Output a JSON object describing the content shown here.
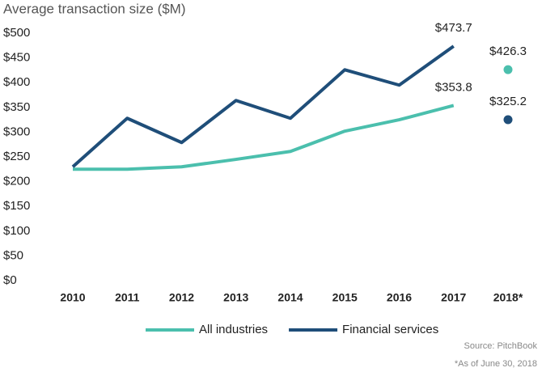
{
  "chart_data": {
    "type": "line",
    "title": "Average transaction size ($M)",
    "categories": [
      "2010",
      "2011",
      "2012",
      "2013",
      "2014",
      "2015",
      "2016",
      "2017",
      "2018*"
    ],
    "series": [
      {
        "name": "All industries",
        "color": "#4bbfad",
        "values": [
          225,
          225,
          230,
          245,
          261,
          302,
          325,
          353.8,
          426.3
        ],
        "value_labels": [
          null,
          null,
          null,
          null,
          null,
          null,
          null,
          "$353.8",
          "$426.3"
        ]
      },
      {
        "name": "Financial services",
        "color": "#1f4e79",
        "values": [
          230,
          328,
          279,
          364,
          328,
          426,
          395,
          473.7,
          325.2
        ],
        "value_labels": [
          null,
          null,
          null,
          null,
          null,
          null,
          null,
          "$473.7",
          "$325.2"
        ]
      }
    ],
    "ylim": [
      0,
      500
    ],
    "yticks": [
      {
        "value": 0,
        "label": "$0"
      },
      {
        "value": 50,
        "label": "$50"
      },
      {
        "value": 100,
        "label": "$100"
      },
      {
        "value": 150,
        "label": "$150"
      },
      {
        "value": 200,
        "label": "$200"
      },
      {
        "value": 250,
        "label": "$250"
      },
      {
        "value": 300,
        "label": "$300"
      },
      {
        "value": 350,
        "label": "$350"
      },
      {
        "value": 400,
        "label": "$400"
      },
      {
        "value": 450,
        "label": "$450"
      },
      {
        "value": 500,
        "label": "$500"
      }
    ],
    "grid": false,
    "legend": "bottom",
    "source": "Source: PitchBook",
    "note": "*As of June 30, 2018"
  }
}
